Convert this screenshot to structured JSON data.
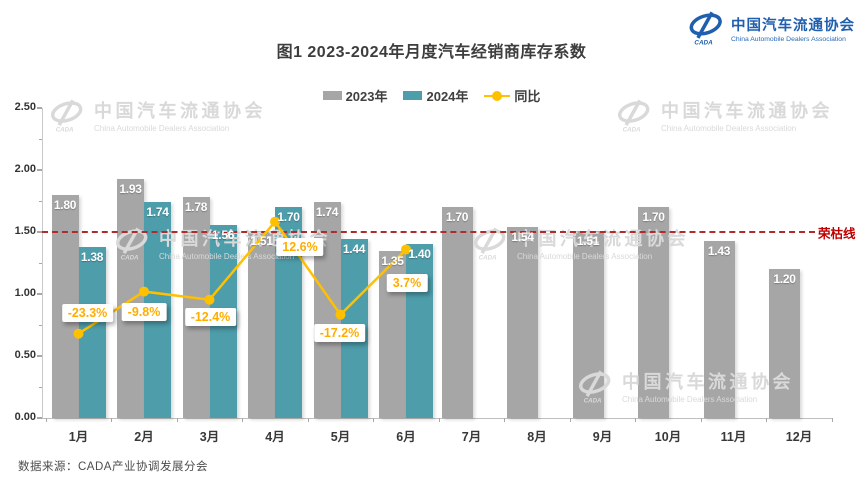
{
  "header": {
    "title": "图1  2023-2024年月度汽车经销商库存系数"
  },
  "logo": {
    "cada": "CADA",
    "name_cn": "中国汽车流通协会",
    "name_en": "China Automobile Dealers Association"
  },
  "watermark": {
    "cada": "CADA",
    "name_cn": "中国汽车流通协会",
    "name_en": "China Automobile Dealers Association"
  },
  "legend": {
    "items": [
      {
        "label": "2023年",
        "color": "#a6a6a6",
        "type": "bar"
      },
      {
        "label": "2024年",
        "color": "#4e9dab",
        "type": "bar"
      },
      {
        "label": "同比",
        "color": "#FFC000",
        "type": "line"
      }
    ]
  },
  "source": "数据来源：CADA产业协调发展分会",
  "chart_data": {
    "type": "bar+line",
    "title": "图1  2023-2024年月度汽车经销商库存系数",
    "categories": [
      "1月",
      "2月",
      "3月",
      "4月",
      "5月",
      "6月",
      "7月",
      "8月",
      "9月",
      "10月",
      "11月",
      "12月"
    ],
    "series": [
      {
        "name": "2023年",
        "type": "bar",
        "color": "#a6a6a6",
        "values": [
          1.8,
          1.93,
          1.78,
          1.51,
          1.74,
          1.35,
          1.7,
          1.54,
          1.51,
          1.7,
          1.43,
          1.2
        ]
      },
      {
        "name": "2024年",
        "type": "bar",
        "color": "#4e9dab",
        "values": [
          1.38,
          1.74,
          1.56,
          1.7,
          1.44,
          1.4,
          null,
          null,
          null,
          null,
          null,
          null
        ]
      },
      {
        "name": "同比",
        "type": "line",
        "color": "#FFC000",
        "unit": "percent",
        "values": [
          -23.3,
          -9.8,
          -12.4,
          12.6,
          -17.2,
          3.7,
          null,
          null,
          null,
          null,
          null,
          null
        ],
        "labels": [
          "-23.3%",
          "-9.8%",
          "-12.4%",
          "12.6%",
          "-17.2%",
          "3.7%"
        ]
      }
    ],
    "y_axis": {
      "min": 0,
      "max": 2.5,
      "tick_step": 0.5,
      "minor_step": 0.25,
      "tick_labels": [
        "0.00",
        "0.50",
        "1.00",
        "1.50",
        "2.00",
        "2.50"
      ]
    },
    "reference_line": {
      "value": 1.5,
      "label": "荣枯线",
      "style": "dashed",
      "color": "#c00000"
    },
    "grid": false,
    "legend_position": "top"
  }
}
